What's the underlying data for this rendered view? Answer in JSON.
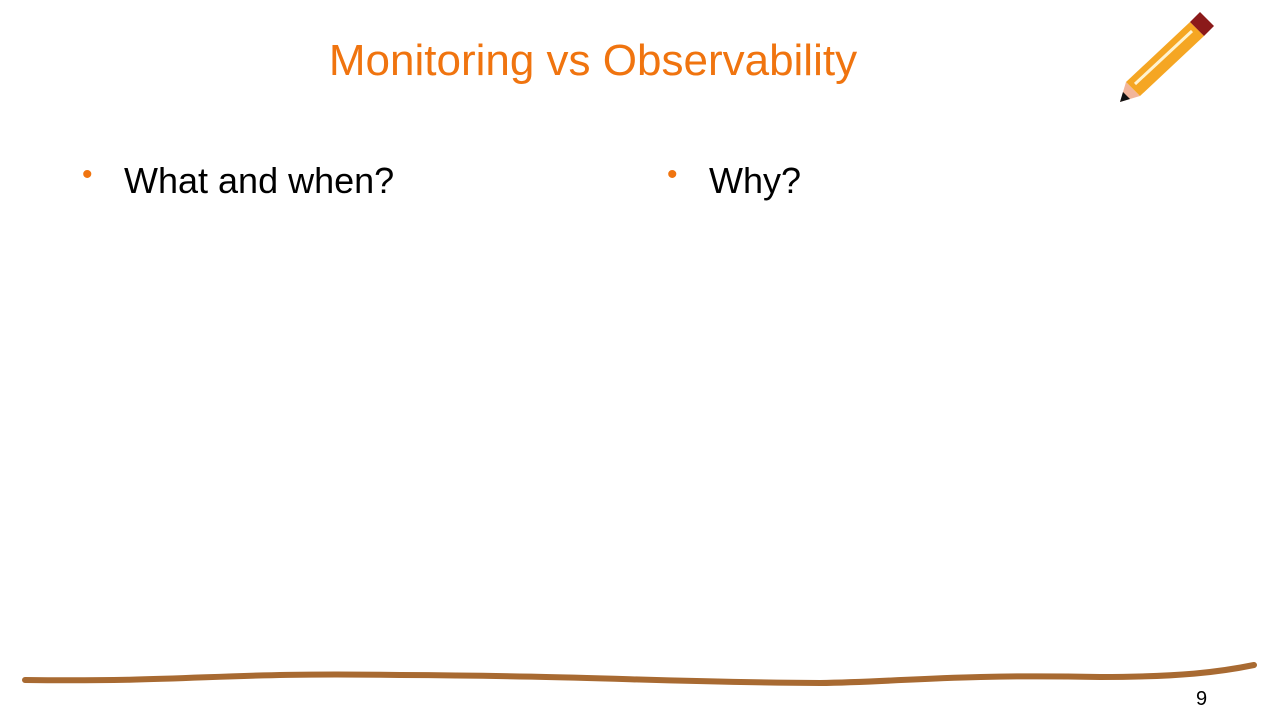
{
  "slide": {
    "title": "Monitoring vs Observability",
    "columns": [
      {
        "bullets": [
          "What and when?"
        ]
      },
      {
        "bullets": [
          "Why?"
        ]
      }
    ],
    "page_number": "9"
  }
}
